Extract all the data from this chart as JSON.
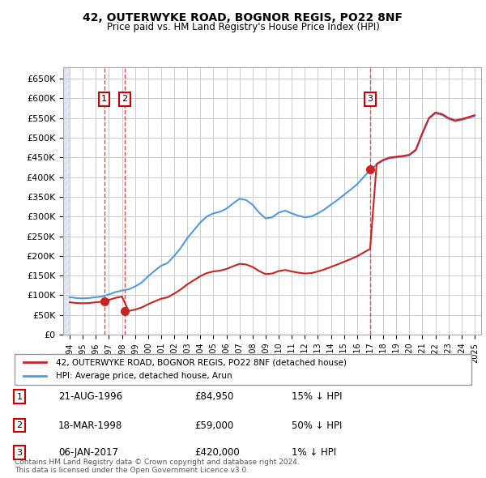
{
  "title": "42, OUTERWYKE ROAD, BOGNOR REGIS, PO22 8NF",
  "subtitle": "Price paid vs. HM Land Registry's House Price Index (HPI)",
  "ylabel": "",
  "bg_color": "#f0f4ff",
  "plot_bg_color": "#ffffff",
  "hatch_color": "#d0d8f0",
  "grid_color": "#cccccc",
  "hpi_color": "#5599dd",
  "price_color": "#cc2222",
  "dashed_color": "#ee4444",
  "sale_marker_color": "#cc2222",
  "sales": [
    {
      "label": "1",
      "date_num": 1996.64,
      "price": 84950,
      "date_str": "21-AUG-1996",
      "pct": "15% ↓ HPI"
    },
    {
      "label": "2",
      "date_num": 1998.21,
      "price": 59000,
      "date_str": "18-MAR-1998",
      "pct": "50% ↓ HPI"
    },
    {
      "label": "3",
      "date_num": 2017.01,
      "price": 420000,
      "date_str": "06-JAN-2017",
      "pct": "1% ↓ HPI"
    }
  ],
  "legend_entries": [
    "42, OUTERWYKE ROAD, BOGNOR REGIS, PO22 8NF (detached house)",
    "HPI: Average price, detached house, Arun"
  ],
  "footer": "Contains HM Land Registry data © Crown copyright and database right 2024.\nThis data is licensed under the Open Government Licence v3.0.",
  "ylim": [
    0,
    680000
  ],
  "yticks": [
    0,
    50000,
    100000,
    150000,
    200000,
    250000,
    300000,
    350000,
    400000,
    450000,
    500000,
    550000,
    600000,
    650000
  ],
  "xlim_start": 1993.5,
  "xlim_end": 2025.5,
  "xticks": [
    1994,
    1995,
    1996,
    1997,
    1998,
    1999,
    2000,
    2001,
    2002,
    2003,
    2004,
    2005,
    2006,
    2007,
    2008,
    2009,
    2010,
    2011,
    2012,
    2013,
    2014,
    2015,
    2016,
    2017,
    2018,
    2019,
    2020,
    2021,
    2022,
    2023,
    2024,
    2025
  ]
}
